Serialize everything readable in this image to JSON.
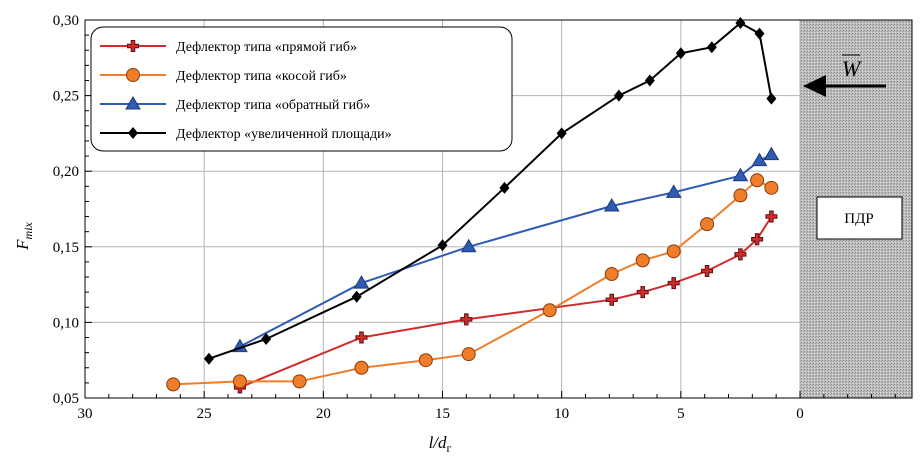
{
  "chart_data": {
    "type": "line",
    "xlabel": "l/d",
    "xlabel_sub": "г",
    "ylabel": "F",
    "ylabel_sub": "mix",
    "xlim": [
      30,
      0
    ],
    "ylim": [
      0.05,
      0.3
    ],
    "x_ticks": [
      30,
      25,
      20,
      15,
      10,
      5,
      0
    ],
    "y_ticks": [
      "0,05",
      "0,10",
      "0,15",
      "0,20",
      "0,25",
      "0,30"
    ],
    "y_tick_values": [
      0.05,
      0.1,
      0.15,
      0.2,
      0.25,
      0.3
    ],
    "grid": true,
    "legend_position": "top-left",
    "shaded_region_label": "ПДР",
    "arrow_label": "W",
    "series": [
      {
        "name": "Дефлектор типа «прямой гиб»",
        "color": "#d42a2a",
        "marker": "plus",
        "x": [
          23.5,
          18.4,
          14.0,
          7.9,
          6.6,
          5.3,
          3.9,
          2.5,
          1.8,
          1.2
        ],
        "y": [
          0.057,
          0.09,
          0.102,
          0.115,
          0.12,
          0.126,
          0.134,
          0.145,
          0.155,
          0.17
        ]
      },
      {
        "name": "Дефлектор типа «косой гиб»",
        "color": "#f07d2a",
        "marker": "circle",
        "x": [
          26.3,
          23.5,
          21.0,
          18.4,
          15.7,
          13.9,
          10.5,
          7.9,
          6.6,
          5.3,
          3.9,
          2.5,
          1.8,
          1.2
        ],
        "y": [
          0.059,
          0.061,
          0.061,
          0.07,
          0.075,
          0.079,
          0.108,
          0.132,
          0.141,
          0.147,
          0.165,
          0.184,
          0.194,
          0.189
        ]
      },
      {
        "name": "Дефлектор типа «обратный гиб»",
        "color": "#2f5bb5",
        "marker": "triangle",
        "x": [
          23.5,
          18.4,
          13.9,
          7.9,
          5.3,
          2.5,
          1.7,
          1.2
        ],
        "y": [
          0.084,
          0.126,
          0.15,
          0.177,
          0.186,
          0.197,
          0.207,
          0.211
        ]
      },
      {
        "name": "Дефлектор «увеличенной площади»",
        "color": "#000000",
        "marker": "diamond",
        "x": [
          24.8,
          22.4,
          18.6,
          15.0,
          12.4,
          10.0,
          7.6,
          6.3,
          5.0,
          3.7,
          2.5,
          1.7,
          1.2
        ],
        "y": [
          0.076,
          0.089,
          0.117,
          0.151,
          0.189,
          0.225,
          0.25,
          0.26,
          0.278,
          0.282,
          0.298,
          0.291,
          0.248
        ]
      }
    ]
  }
}
